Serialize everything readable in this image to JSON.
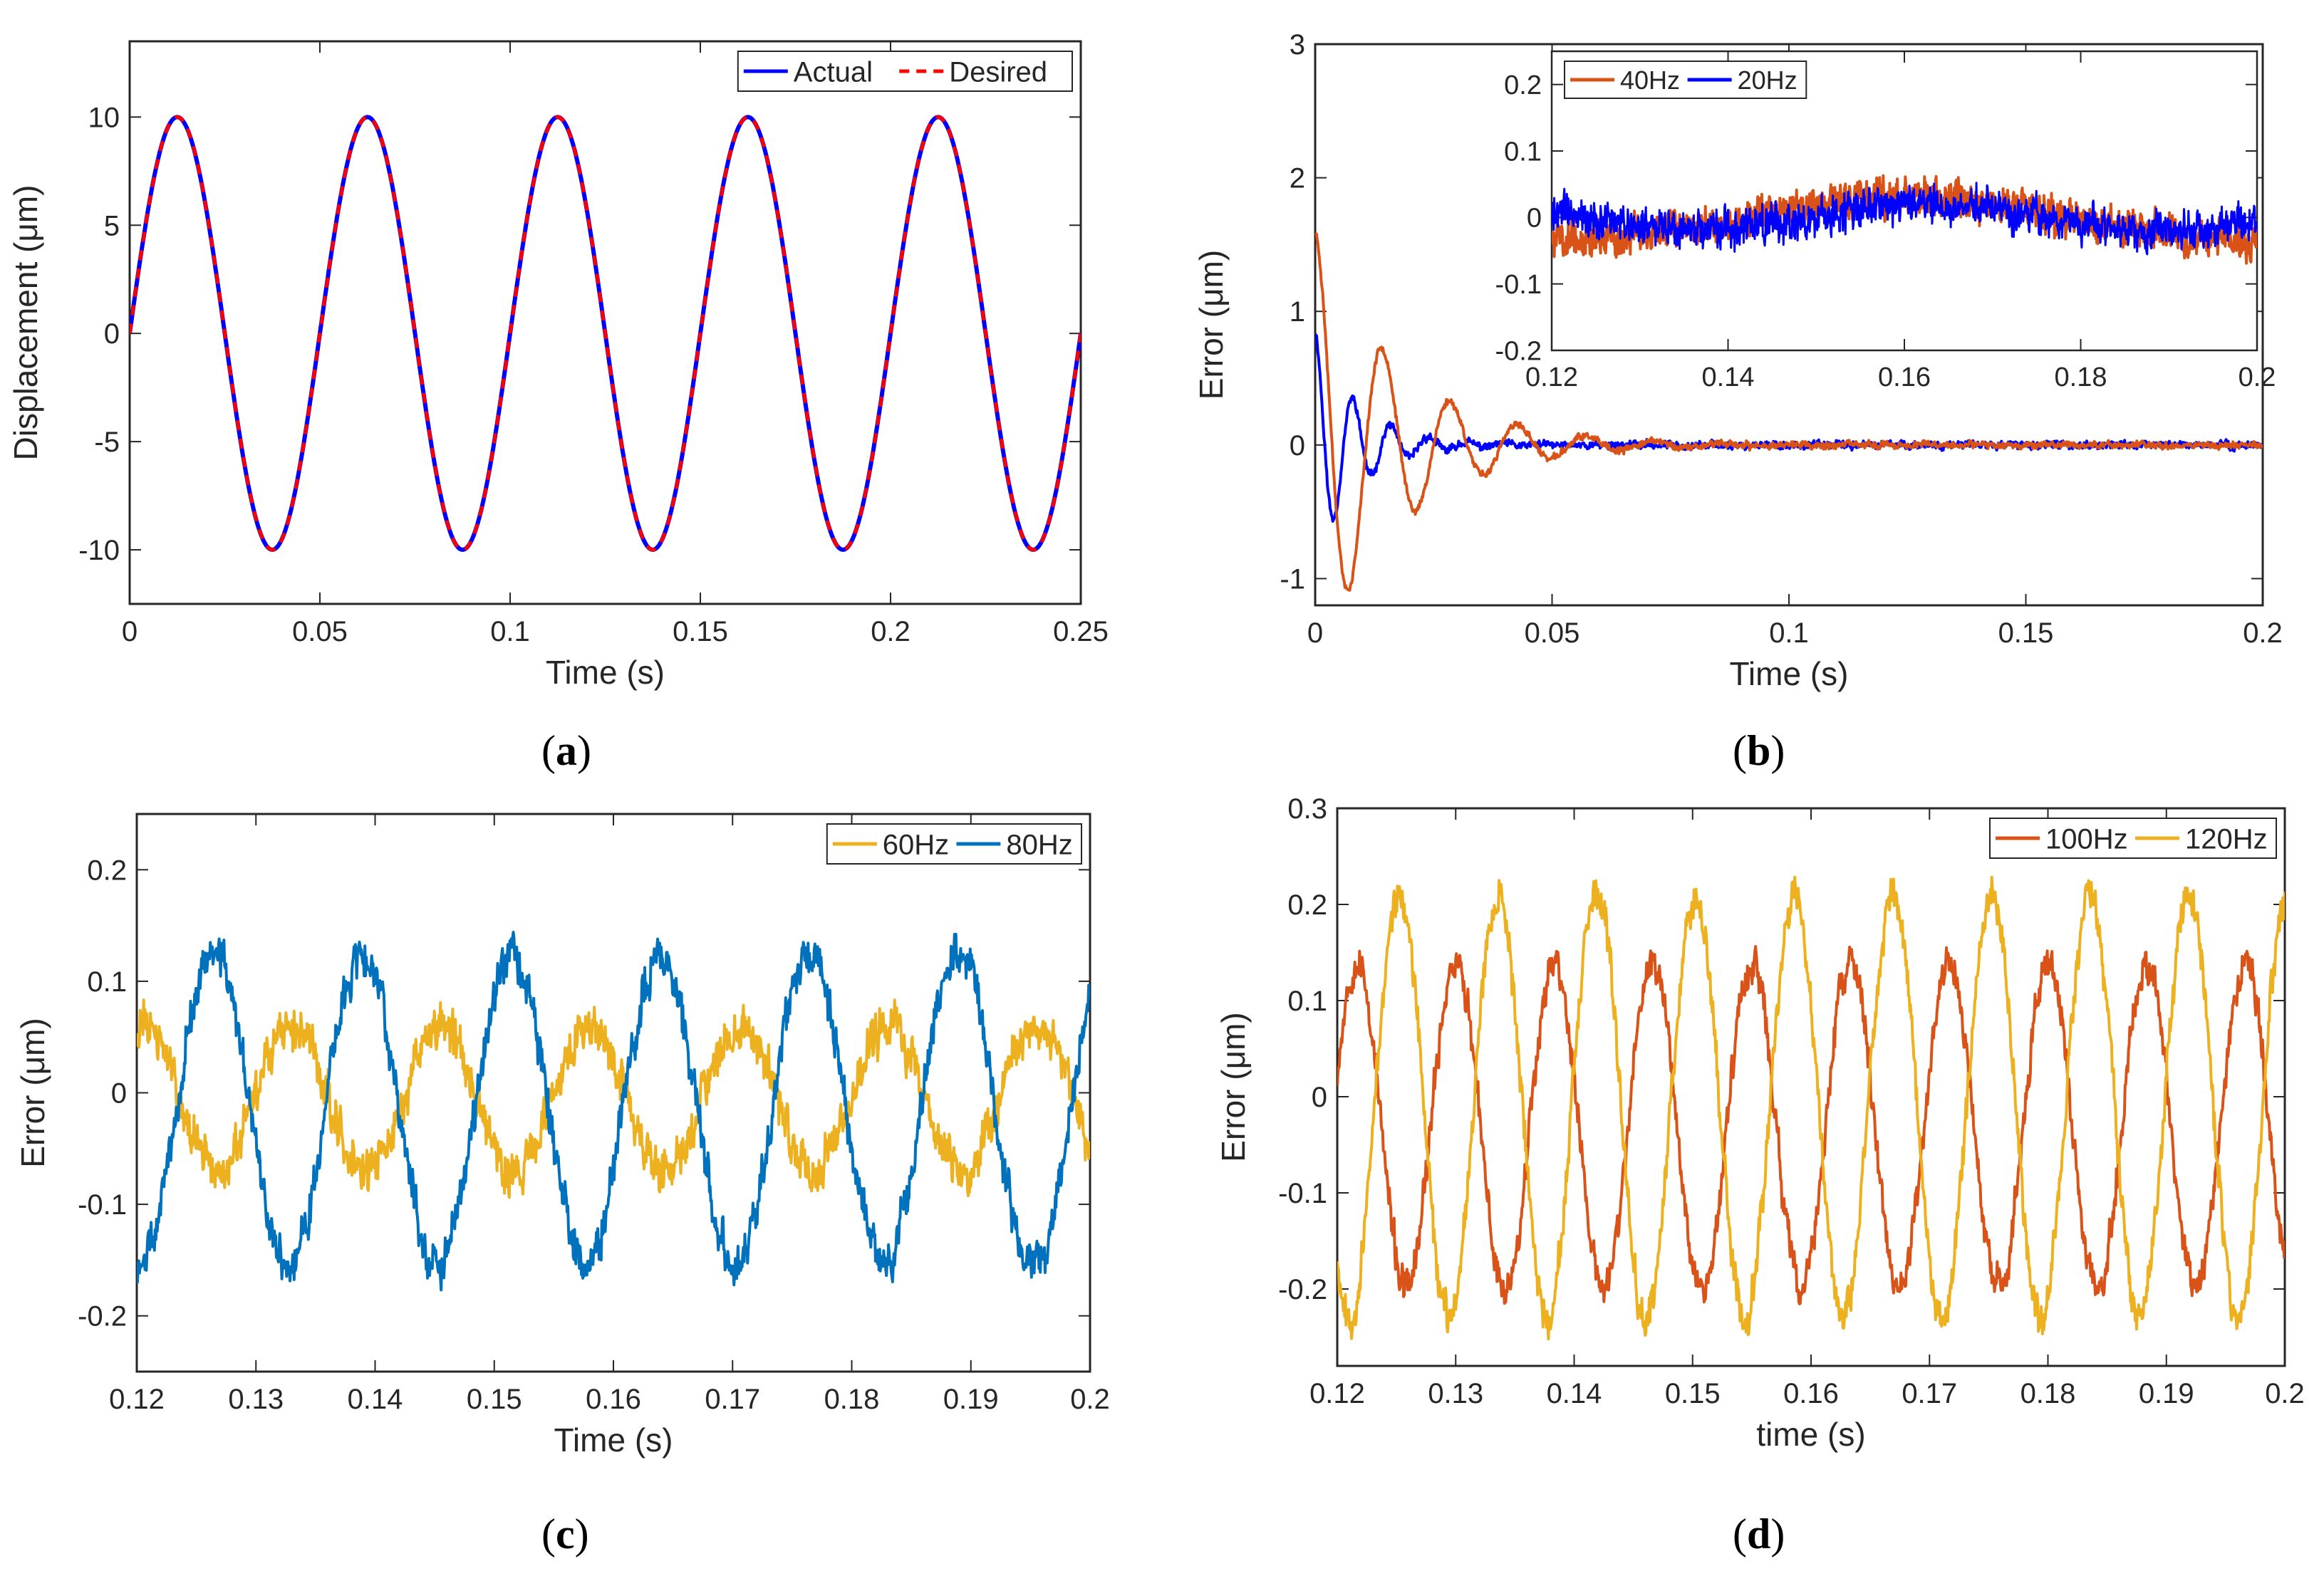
{
  "chart_data": [
    {
      "id": "a",
      "type": "line",
      "caption": "a",
      "xlabel": "Time (s)",
      "ylabel": "Displacement (μm)",
      "xlim": [
        0,
        0.25
      ],
      "ylim": [
        -12.5,
        13.5
      ],
      "xticks": [
        0,
        0.05,
        0.1,
        0.15,
        0.2,
        0.25
      ],
      "xticklabels": [
        "0",
        "0.05",
        "0.1",
        "0.15",
        "0.2",
        "0.25"
      ],
      "yticks": [
        -10,
        -5,
        0,
        5,
        10
      ],
      "yticklabels": [
        "-10",
        "-5",
        "0",
        "5",
        "10"
      ],
      "legend": "top-right",
      "series": [
        {
          "name": "Actual",
          "color": "#0000ff",
          "style": "solid",
          "model": {
            "kind": "sine",
            "freq": 20,
            "amp": 10
          }
        },
        {
          "name": "Desired",
          "color": "#ff0000",
          "style": "dashed",
          "model": {
            "kind": "sine",
            "freq": 20,
            "amp": 10
          }
        }
      ]
    },
    {
      "id": "b",
      "type": "line",
      "caption": "b",
      "xlabel": "Time (s)",
      "ylabel": "Error (μm)",
      "xlim": [
        0,
        0.2
      ],
      "ylim": [
        -1.2,
        3
      ],
      "xticks": [
        0,
        0.05,
        0.1,
        0.15,
        0.2
      ],
      "xticklabels": [
        "0",
        "0.05",
        "0.1",
        "0.15",
        "0.2"
      ],
      "yticks": [
        -1,
        0,
        1,
        2,
        3
      ],
      "yticklabels": [
        "-1",
        "0",
        "1",
        "2",
        "3"
      ],
      "legend": "none",
      "series": [
        {
          "name": "20Hz",
          "color": "#0000ff",
          "style": "solid",
          "model": {
            "kind": "transient",
            "a0": 0.85,
            "tau": 0.009,
            "freq": 125,
            "noise": 0.035,
            "seed": 11
          }
        },
        {
          "name": "40Hz",
          "color": "#d95319",
          "style": "solid",
          "model": {
            "kind": "transient",
            "a0": 1.6,
            "tau": 0.018,
            "freq": 70,
            "noise": 0.03,
            "seed": 23
          }
        }
      ],
      "inset": {
        "xlim": [
          0.12,
          0.2
        ],
        "ylim": [
          -0.2,
          0.25
        ],
        "xticks": [
          0.12,
          0.14,
          0.16,
          0.18,
          0.2
        ],
        "xticklabels": [
          "0.12",
          "0.14",
          "0.16",
          "0.18",
          "0.2"
        ],
        "yticks": [
          -0.2,
          -0.1,
          0,
          0.1,
          0.2
        ],
        "yticklabels": [
          "-0.2",
          "-0.1",
          "0",
          "0.1",
          "0.2"
        ],
        "legend": "top-left",
        "series": [
          {
            "name": "40Hz",
            "color": "#d95319",
            "model": {
              "kind": "noise",
              "amp": 0.03,
              "freq": 14,
              "noise": 0.03,
              "seed": 5
            }
          },
          {
            "name": "20Hz",
            "color": "#0000ff",
            "model": {
              "kind": "noise",
              "amp": 0.02,
              "freq": 20,
              "noise": 0.03,
              "seed": 9
            }
          }
        ]
      }
    },
    {
      "id": "c",
      "type": "line",
      "caption": "c",
      "xlabel": "Time (s)",
      "ylabel": "Error (μm)",
      "xlim": [
        0.12,
        0.2
      ],
      "ylim": [
        -0.25,
        0.25
      ],
      "xticks": [
        0.12,
        0.13,
        0.14,
        0.15,
        0.16,
        0.17,
        0.18,
        0.19,
        0.2
      ],
      "xticklabels": [
        "0.12",
        "0.13",
        "0.14",
        "0.15",
        "0.16",
        "0.17",
        "0.18",
        "0.19",
        "0.2"
      ],
      "yticks": [
        -0.2,
        -0.1,
        0,
        0.1,
        0.2
      ],
      "yticklabels": [
        "-0.2",
        "-0.1",
        "0",
        "0.1",
        "0.2"
      ],
      "legend": "top-right",
      "series": [
        {
          "name": "60Hz",
          "color": "#edb120",
          "style": "solid",
          "model": {
            "kind": "osc",
            "amp": 0.065,
            "freq": 80,
            "phase": 3.8,
            "offset": -0.005,
            "noise": 0.028,
            "seed": 31
          }
        },
        {
          "name": "80Hz",
          "color": "#0072bd",
          "style": "solid",
          "model": {
            "kind": "osc",
            "amp": 0.14,
            "freq": 80,
            "phase": 0.85,
            "offset": -0.015,
            "noise": 0.025,
            "seed": 47
          }
        }
      ]
    },
    {
      "id": "d",
      "type": "line",
      "caption": "d",
      "xlabel": "time (s)",
      "ylabel": "Error (μm)",
      "xlim": [
        0.12,
        0.2
      ],
      "ylim": [
        -0.28,
        0.3
      ],
      "xticks": [
        0.12,
        0.13,
        0.14,
        0.15,
        0.16,
        0.17,
        0.18,
        0.19,
        0.2
      ],
      "xticklabels": [
        "0.12",
        "0.13",
        "0.14",
        "0.15",
        "0.16",
        "0.17",
        "0.18",
        "0.19",
        "0.2"
      ],
      "yticks": [
        -0.2,
        -0.1,
        0,
        0.1,
        0.2,
        0.3
      ],
      "yticklabels": [
        "-0.2",
        "-0.1",
        "0",
        "0.1",
        "0.2",
        "0.3"
      ],
      "legend": "top-right",
      "series": [
        {
          "name": "100Hz",
          "color": "#d95319",
          "style": "solid",
          "model": {
            "kind": "osc",
            "amp": 0.17,
            "freq": 120,
            "phase": 4.1,
            "offset": -0.03,
            "noise": 0.025,
            "seed": 53
          }
        },
        {
          "name": "120Hz",
          "color": "#edb120",
          "style": "solid",
          "model": {
            "kind": "osc",
            "amp": 0.22,
            "freq": 120,
            "phase": 1.4,
            "offset": -0.01,
            "noise": 0.025,
            "seed": 67
          }
        }
      ]
    }
  ]
}
